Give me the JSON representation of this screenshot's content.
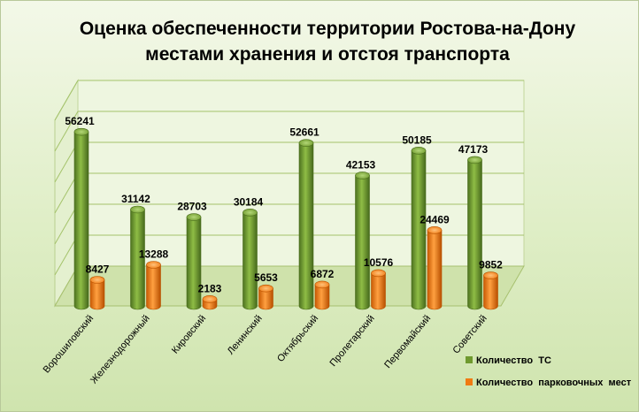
{
  "chart_data": {
    "type": "bar",
    "title": [
      "Оценка обеспеченности территории Ростова-на-Дону",
      "местами хранения и отстоя транспорта"
    ],
    "categories": [
      "Ворошиловский",
      "Железнодорожный",
      "Кировский",
      "Ленинский",
      "Октябрьский",
      "Пролетарский",
      "Первомайский",
      "Советский"
    ],
    "series": [
      {
        "name": "Количество  ТС",
        "values": [
          56241,
          31142,
          28703,
          30184,
          52661,
          42153,
          50185,
          47173
        ]
      },
      {
        "name": "Количество  парковочных  мест",
        "values": [
          8427,
          13288,
          2183,
          5653,
          6872,
          10576,
          24469,
          9852
        ]
      }
    ],
    "ylim": [
      0,
      60000
    ],
    "grid": true,
    "legend_position": "bottom-right",
    "colors": {
      "series_1": "#6f9a2e",
      "series_2": "#f07a12"
    }
  }
}
